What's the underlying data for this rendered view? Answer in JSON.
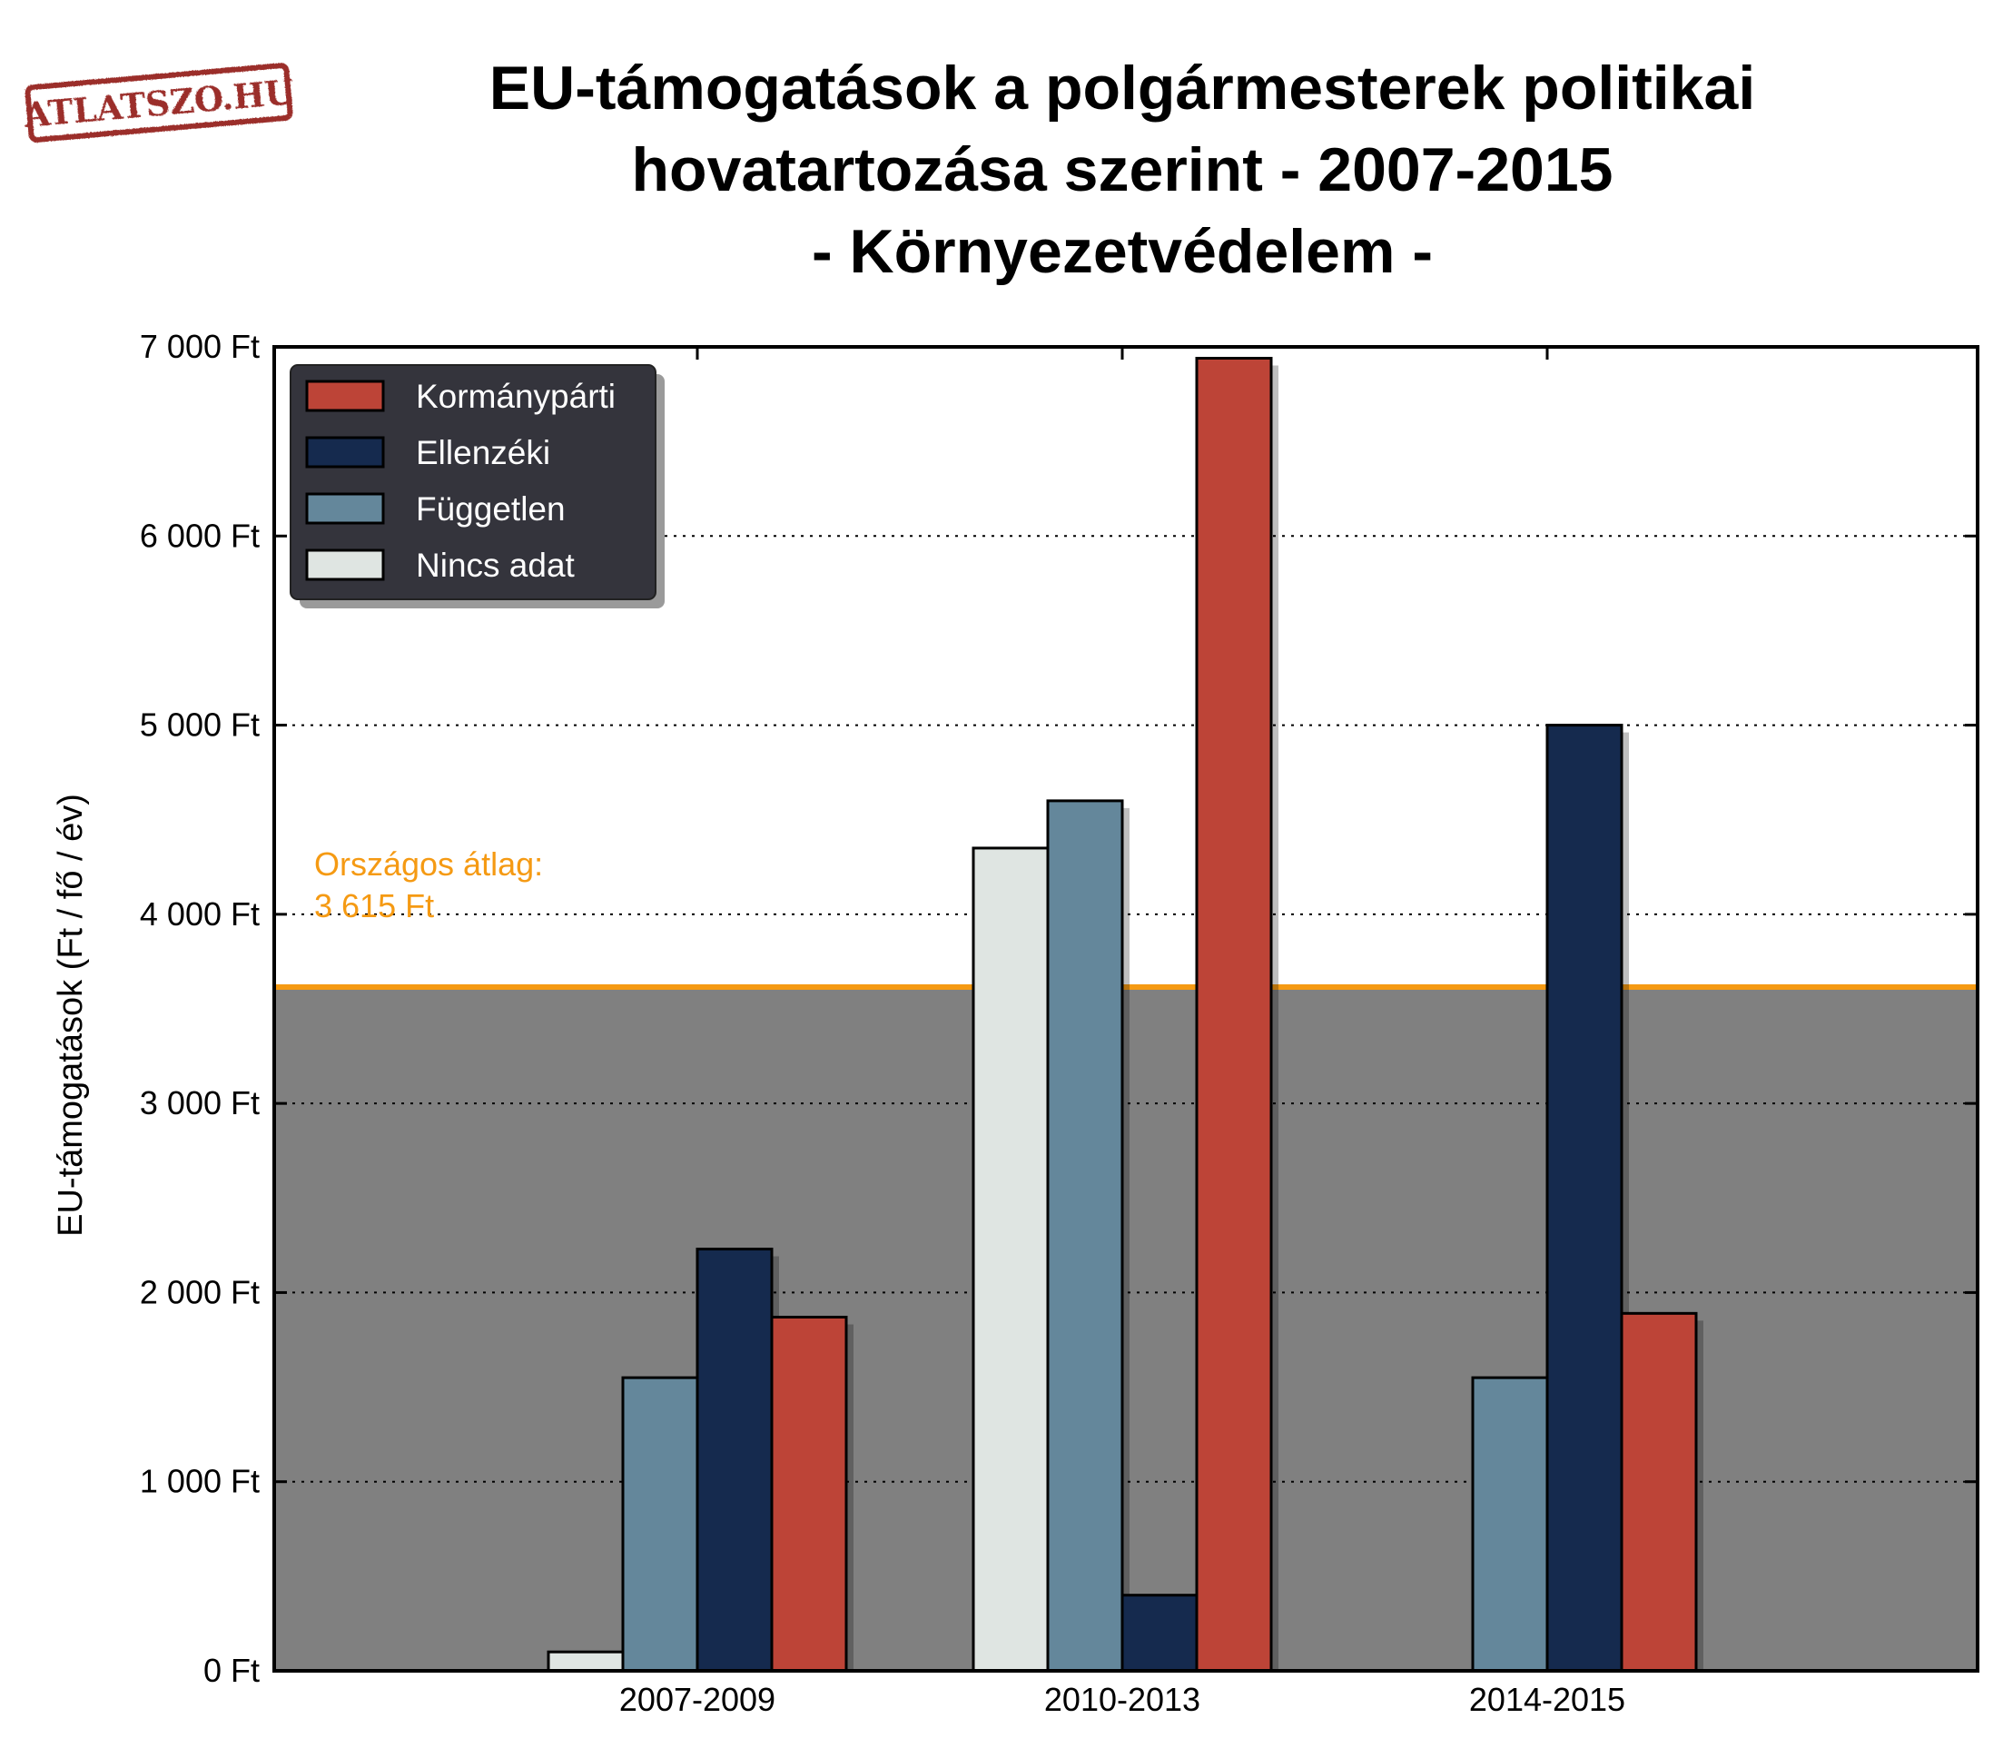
{
  "logo": {
    "text": "ATLATSZO.HU",
    "color": "#9b2d2a"
  },
  "chart_data": {
    "type": "bar",
    "title_lines": [
      "EU-támogatások a polgármesterek politikai",
      "hovatartozása szerint - 2007-2015",
      "- Környezetvédelem -"
    ],
    "xlabel": "",
    "ylabel": "EU-támogatások (Ft / fő / év)",
    "ylim": [
      0,
      7000
    ],
    "yticks": [
      {
        "value": 0,
        "label": "0 Ft"
      },
      {
        "value": 1000,
        "label": "1 000 Ft"
      },
      {
        "value": 2000,
        "label": "2 000 Ft"
      },
      {
        "value": 3000,
        "label": "3 000 Ft"
      },
      {
        "value": 4000,
        "label": "4 000 Ft"
      },
      {
        "value": 5000,
        "label": "5 000 Ft"
      },
      {
        "value": 6000,
        "label": "6 000 Ft"
      },
      {
        "value": 7000,
        "label": "7 000 Ft"
      }
    ],
    "grid": "dotted horizontal",
    "categories": [
      "2007-2009",
      "2010-2013",
      "2014-2015"
    ],
    "series": [
      {
        "name": "Nincs adat",
        "color": "#dfe5e2",
        "values": [
          100,
          4350,
          0
        ]
      },
      {
        "name": "Független",
        "color": "#64879b",
        "values": [
          1550,
          4600,
          1550
        ]
      },
      {
        "name": "Ellenzéki",
        "color": "#152a4e",
        "values": [
          2230,
          400,
          5000
        ]
      },
      {
        "name": "Kormánypárti",
        "color": "#bd4437",
        "values": [
          1870,
          6940,
          1890
        ]
      }
    ],
    "legend": {
      "placement": "top-left",
      "order": [
        "Kormánypárti",
        "Ellenzéki",
        "Független",
        "Nincs adat"
      ]
    },
    "reference_line": {
      "value": 3615,
      "label_lines": [
        "Országos átlag:",
        "3 615 Ft"
      ],
      "color": "#f59a13",
      "fill_below": "#808080"
    }
  }
}
